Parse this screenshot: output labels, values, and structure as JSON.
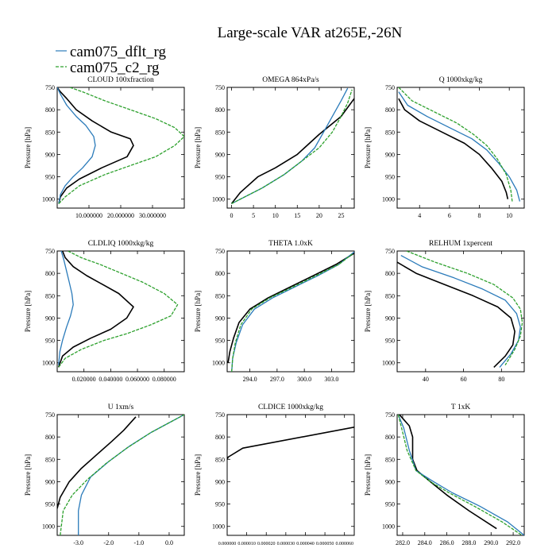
{
  "title": "Large-scale VAR at265E,-26N",
  "legend": [
    {
      "name": "cam075_dflt_rg",
      "color": "#2b7bba",
      "dash": false
    },
    {
      "name": "cam075_c2_rg",
      "color": "#2ca02c",
      "dash": true
    }
  ],
  "series_colors": {
    "control": "#000000",
    "dflt": "#2b7bba",
    "c2": "#2ca02c"
  },
  "ylabel": "Pressure [hPa]",
  "chart_data": [
    {
      "type": "line",
      "title": "CLOUD  100xfraction",
      "xlim": [
        0,
        40
      ],
      "ylim": [
        1020,
        750
      ],
      "xticks": [
        10,
        20,
        30
      ],
      "xtick_labels": [
        "10.000000",
        "20.000000",
        "30.000000"
      ],
      "yticks": [
        750,
        800,
        850,
        900,
        950,
        1000
      ],
      "series": [
        {
          "key": "control",
          "x": [
            0,
            1,
            3,
            6,
            11,
            17,
            23,
            24,
            22,
            14,
            7,
            3,
            1,
            0.5
          ],
          "y": [
            750,
            760,
            775,
            800,
            825,
            850,
            865,
            880,
            905,
            930,
            955,
            975,
            995,
            1010
          ]
        },
        {
          "key": "dflt",
          "x": [
            0,
            1,
            3,
            6,
            9,
            11.5,
            12,
            11,
            8,
            5,
            2.5,
            1,
            0.5
          ],
          "y": [
            750,
            765,
            790,
            815,
            835,
            860,
            880,
            905,
            930,
            950,
            970,
            990,
            1010
          ]
        },
        {
          "key": "c2",
          "x": [
            4,
            8,
            15,
            23,
            31,
            37,
            40,
            37,
            31,
            23,
            15,
            7,
            2.5,
            0.5
          ],
          "y": [
            750,
            760,
            780,
            800,
            820,
            840,
            860,
            880,
            905,
            925,
            945,
            970,
            995,
            1010
          ]
        }
      ]
    },
    {
      "type": "line",
      "title": "OMEGA  864xPa/s",
      "xlim": [
        -1,
        28
      ],
      "ylim": [
        1020,
        750
      ],
      "xticks": [
        0,
        5,
        10,
        15,
        20,
        25
      ],
      "xtick_labels": [
        "0",
        "5",
        "10",
        "15",
        "20",
        "25"
      ],
      "yticks": [
        750,
        800,
        850,
        900,
        950,
        1000
      ],
      "series": [
        {
          "key": "control",
          "x": [
            0,
            2,
            6,
            10,
            15,
            20,
            25,
            28
          ],
          "y": [
            1010,
            985,
            950,
            930,
            900,
            855,
            815,
            775
          ]
        },
        {
          "key": "dflt",
          "x": [
            0,
            3,
            7,
            12,
            16,
            19,
            21,
            23,
            25,
            26.5
          ],
          "y": [
            1010,
            995,
            975,
            945,
            915,
            885,
            850,
            815,
            780,
            752
          ]
        },
        {
          "key": "c2",
          "x": [
            0,
            3,
            7,
            12,
            16,
            20,
            23,
            25,
            26.5,
            27.5
          ],
          "y": [
            1010,
            995,
            975,
            945,
            915,
            885,
            850,
            815,
            785,
            755
          ]
        }
      ]
    },
    {
      "type": "line",
      "title": "Q  1000xkg/kg",
      "xlim": [
        2.5,
        11
      ],
      "ylim": [
        1020,
        750
      ],
      "xticks": [
        4,
        6,
        8,
        10
      ],
      "xtick_labels": [
        "4",
        "6",
        "8",
        "10"
      ],
      "yticks": [
        750,
        800,
        850,
        900,
        950,
        1000
      ],
      "series": [
        {
          "key": "control",
          "x": [
            2.6,
            3.0,
            4.0,
            5.5,
            7.0,
            8.0,
            8.8,
            9.5,
            9.8,
            9.9
          ],
          "y": [
            775,
            800,
            825,
            850,
            875,
            900,
            930,
            960,
            985,
            1000
          ]
        },
        {
          "key": "dflt",
          "x": [
            2.6,
            3.2,
            4.5,
            6.0,
            7.5,
            8.5,
            9.3,
            10.0,
            10.5,
            10.7
          ],
          "y": [
            760,
            790,
            815,
            840,
            865,
            890,
            920,
            950,
            980,
            1005
          ]
        },
        {
          "key": "c2",
          "x": [
            2.6,
            3.5,
            5.0,
            6.5,
            7.6,
            8.5,
            9.2,
            9.8,
            10.1,
            10.2
          ],
          "y": [
            750,
            780,
            805,
            830,
            855,
            880,
            910,
            945,
            980,
            1005
          ]
        }
      ]
    },
    {
      "type": "line",
      "title": "CLDLIQ  1000xkg/kg",
      "xlim": [
        0,
        0.095
      ],
      "ylim": [
        1020,
        750
      ],
      "xticks": [
        0.02,
        0.04,
        0.06,
        0.08
      ],
      "xtick_labels": [
        "0.020000",
        "0.040000",
        "0.060000",
        "0.080000"
      ],
      "yticks": [
        750,
        800,
        850,
        900,
        950,
        1000
      ],
      "series": [
        {
          "key": "control",
          "x": [
            0.004,
            0.006,
            0.012,
            0.022,
            0.034,
            0.046,
            0.057,
            0.052,
            0.04,
            0.025,
            0.012,
            0.004,
            0.001
          ],
          "y": [
            750,
            765,
            785,
            805,
            825,
            845,
            875,
            900,
            925,
            945,
            965,
            985,
            1010
          ]
        },
        {
          "key": "dflt",
          "x": [
            0.003,
            0.005,
            0.007,
            0.009,
            0.011,
            0.012,
            0.01,
            0.007,
            0.004,
            0.002,
            0.001
          ],
          "y": [
            750,
            770,
            795,
            820,
            845,
            870,
            895,
            920,
            950,
            975,
            1005
          ]
        },
        {
          "key": "c2",
          "x": [
            0.008,
            0.018,
            0.032,
            0.048,
            0.064,
            0.08,
            0.09,
            0.085,
            0.07,
            0.052,
            0.035,
            0.018,
            0.006,
            0.001
          ],
          "y": [
            750,
            765,
            780,
            800,
            820,
            845,
            870,
            895,
            915,
            935,
            950,
            970,
            990,
            1010
          ]
        }
      ]
    },
    {
      "type": "line",
      "title": "THETA  1.0xK",
      "xlim": [
        291.5,
        305.5
      ],
      "ylim": [
        1020,
        750
      ],
      "xticks": [
        294,
        297,
        300,
        303
      ],
      "xtick_labels": [
        "294.0",
        "297.0",
        "300.0",
        "303.0"
      ],
      "yticks": [
        750,
        800,
        850,
        900,
        950,
        1000
      ],
      "series": [
        {
          "key": "control",
          "x": [
            291.6,
            291.8,
            292.2,
            292.8,
            294.0,
            296.0,
            298.5,
            301.0,
            303.5,
            305.5
          ],
          "y": [
            1000,
            975,
            945,
            910,
            880,
            855,
            830,
            805,
            780,
            755
          ]
        },
        {
          "key": "dflt",
          "x": [
            292.0,
            292.1,
            292.5,
            293.2,
            294.5,
            296.5,
            299.0,
            301.5,
            303.8,
            305.5
          ],
          "y": [
            1020,
            990,
            955,
            915,
            880,
            855,
            830,
            805,
            780,
            752
          ]
        },
        {
          "key": "c2",
          "x": [
            292.0,
            292.1,
            292.4,
            293.0,
            294.2,
            296.2,
            298.8,
            301.3,
            303.8,
            305.4
          ],
          "y": [
            1020,
            990,
            955,
            915,
            880,
            855,
            830,
            805,
            780,
            755
          ]
        }
      ]
    },
    {
      "type": "line",
      "title": "RELHUM  1xpercent",
      "xlim": [
        25,
        92
      ],
      "ylim": [
        1020,
        750
      ],
      "xticks": [
        40,
        60,
        80
      ],
      "xtick_labels": [
        "40",
        "60",
        "80"
      ],
      "yticks": [
        750,
        800,
        850,
        900,
        950,
        1000
      ],
      "series": [
        {
          "key": "control",
          "x": [
            25,
            35,
            50,
            65,
            78,
            85,
            87,
            86,
            82,
            76
          ],
          "y": [
            775,
            800,
            825,
            850,
            875,
            900,
            930,
            960,
            985,
            1010
          ]
        },
        {
          "key": "dflt",
          "x": [
            27,
            38,
            55,
            70,
            82,
            88,
            90,
            89,
            85,
            79
          ],
          "y": [
            760,
            785,
            810,
            835,
            860,
            890,
            920,
            950,
            980,
            1010
          ]
        },
        {
          "key": "c2",
          "x": [
            30,
            45,
            62,
            76,
            86,
            90,
            91,
            90,
            87,
            82
          ],
          "y": [
            750,
            775,
            800,
            825,
            855,
            880,
            910,
            940,
            970,
            1005
          ]
        }
      ]
    },
    {
      "type": "line",
      "title": "U  1xm/s",
      "xlim": [
        -3.7,
        0.5
      ],
      "ylim": [
        1020,
        750
      ],
      "xticks": [
        -3,
        -2,
        -1,
        0
      ],
      "xtick_labels": [
        "-3.0",
        "-2.0",
        "-1.0",
        "0.0"
      ],
      "yticks": [
        750,
        800,
        850,
        900,
        950,
        1000
      ],
      "series": [
        {
          "key": "control",
          "x": [
            -3.7,
            -3.6,
            -3.3,
            -2.9,
            -2.4,
            -1.9,
            -1.5,
            -1.1
          ],
          "y": [
            960,
            935,
            900,
            870,
            840,
            810,
            785,
            755
          ]
        },
        {
          "key": "dflt",
          "x": [
            -3.0,
            -3.0,
            -2.9,
            -2.6,
            -2.0,
            -1.3,
            -0.6,
            0.5
          ],
          "y": [
            1020,
            965,
            930,
            890,
            855,
            820,
            790,
            750
          ]
        },
        {
          "key": "c2",
          "x": [
            -3.6,
            -3.5,
            -3.2,
            -2.7,
            -2.1,
            -1.4,
            -0.6,
            0.5
          ],
          "y": [
            1020,
            965,
            930,
            895,
            860,
            825,
            790,
            750
          ]
        }
      ]
    },
    {
      "type": "line",
      "title": "CLDICE  1000xkg/kg",
      "xlim": [
        0,
        6.5e-05
      ],
      "ylim": [
        1020,
        750
      ],
      "xticks": [
        0,
        1e-05,
        2e-05,
        3e-05,
        4e-05,
        5e-05,
        6e-05
      ],
      "xtick_labels": [
        "0.000000",
        "0.000010",
        "0.000020",
        "0.000030",
        "0.000040",
        "0.000050",
        "0.000060"
      ],
      "yticks": [
        750,
        800,
        850,
        900,
        950,
        1000
      ],
      "series": [
        {
          "key": "control",
          "x": [
            0,
            5e-07,
            8e-06,
            6.5e-05
          ],
          "y": [
            850,
            845,
            825,
            778
          ]
        }
      ]
    },
    {
      "type": "line",
      "title": "T  1xK",
      "xlim": [
        281.5,
        293.0
      ],
      "ylim": [
        1020,
        750
      ],
      "xticks": [
        282,
        284,
        286,
        288,
        290,
        292
      ],
      "xtick_labels": [
        "282.0",
        "284.0",
        "286.0",
        "288.0",
        "290.0",
        "292.0"
      ],
      "yticks": [
        750,
        800,
        850,
        900,
        950,
        1000
      ],
      "series": [
        {
          "key": "control",
          "x": [
            281.7,
            282.6,
            282.9,
            282.9,
            283.3,
            284.5,
            286.0,
            288.0,
            290.5
          ],
          "y": [
            750,
            775,
            800,
            850,
            875,
            900,
            930,
            965,
            1005
          ]
        },
        {
          "key": "dflt",
          "x": [
            281.6,
            282.1,
            282.6,
            283.2,
            284.8,
            286.5,
            289.0,
            291.5,
            293.0
          ],
          "y": [
            750,
            780,
            830,
            875,
            900,
            925,
            955,
            990,
            1020
          ]
        },
        {
          "key": "c2",
          "x": [
            281.6,
            281.9,
            282.4,
            283.2,
            284.5,
            286.2,
            288.5,
            291.0,
            292.8
          ],
          "y": [
            750,
            780,
            830,
            875,
            900,
            925,
            955,
            990,
            1020
          ]
        }
      ]
    }
  ]
}
